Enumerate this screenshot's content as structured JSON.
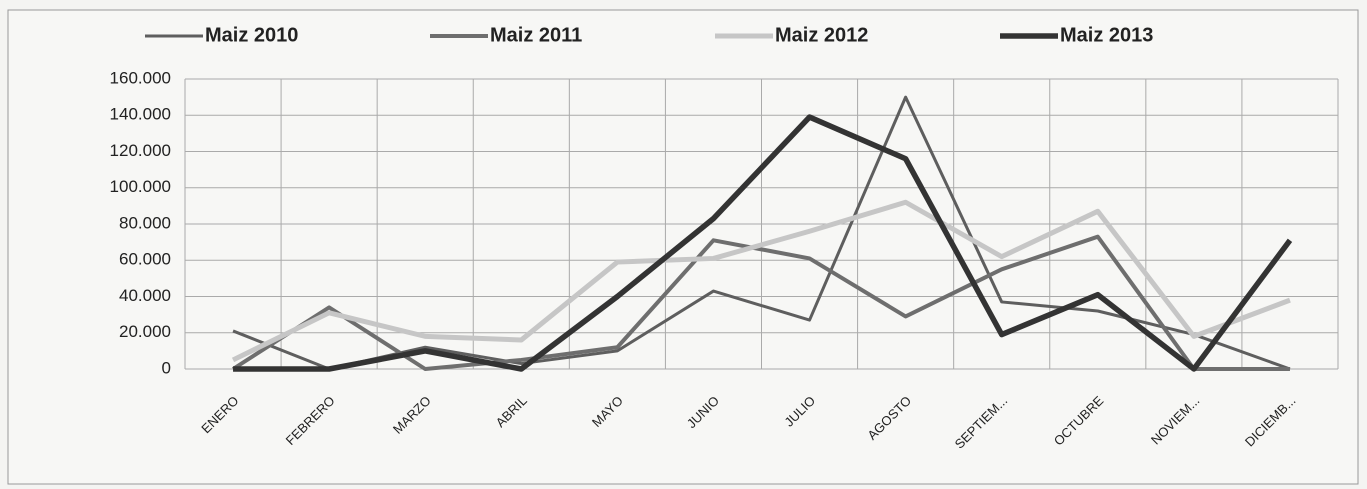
{
  "chart_data": {
    "type": "line",
    "categories": [
      "ENERO",
      "FEBRERO",
      "MARZO",
      "ABRIL",
      "MAYO",
      "JUNIO",
      "JULIO",
      "AGOSTO",
      "SEPTIEM...",
      "OCTUBRE",
      "NOVIEM...",
      "DICIEMB..."
    ],
    "series": [
      {
        "name": "Maiz 2010",
        "color": "#5e5e5e",
        "values": [
          21000,
          0,
          12000,
          3000,
          10000,
          43000,
          27000,
          150000,
          37000,
          32000,
          19000,
          0
        ]
      },
      {
        "name": "Maiz 2011",
        "color": "#6e6e6e",
        "values": [
          0,
          34000,
          0,
          5000,
          12000,
          71000,
          61000,
          29000,
          55000,
          73000,
          0,
          0
        ]
      },
      {
        "name": "Maiz 2012",
        "color": "#c6c6c6",
        "values": [
          5000,
          31000,
          18000,
          16000,
          59000,
          61000,
          76000,
          92000,
          62000,
          87000,
          18000,
          38000
        ]
      },
      {
        "name": "Maiz 2013",
        "color": "#333333",
        "values": [
          0,
          0,
          10000,
          0,
          40000,
          83000,
          139000,
          116000,
          19000,
          41000,
          0,
          71000
        ]
      }
    ],
    "ylim": [
      0,
      160000
    ],
    "yticks": [
      0,
      {
        "value": 20000,
        "label": "20.000"
      },
      {
        "value": 40000,
        "label": "40.000"
      },
      {
        "value": 60000,
        "label": "60.000"
      },
      {
        "value": 80000,
        "label": "80.000"
      },
      {
        "value": 100000,
        "label": "100.000"
      },
      {
        "value": 120000,
        "label": "120.000"
      },
      {
        "value": 140000,
        "label": "140.000"
      },
      {
        "value": 160000,
        "label": "160.000"
      }
    ],
    "grid": true,
    "legend": "top"
  }
}
